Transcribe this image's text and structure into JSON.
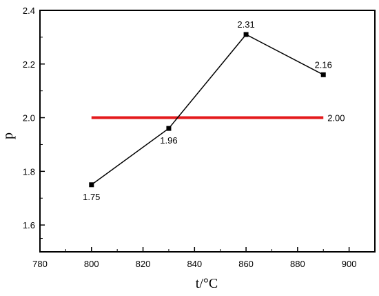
{
  "chart_data": {
    "type": "line",
    "title": "",
    "xlabel": "t/°C",
    "ylabel": "p",
    "xlim": [
      780,
      910
    ],
    "ylim": [
      1.5,
      2.4
    ],
    "xticks": [
      780,
      800,
      820,
      840,
      860,
      880,
      900
    ],
    "xtick_labels": [
      "780",
      "800",
      "820",
      "840",
      "860",
      "880",
      "900"
    ],
    "yticks": [
      1.6,
      1.8,
      2.0,
      2.2,
      2.4
    ],
    "ytick_labels": [
      "1.6",
      "1.8",
      "2.0",
      "2.2",
      "2.4"
    ],
    "grid": false,
    "series": [
      {
        "x": [
          800,
          830,
          860,
          890
        ],
        "y": [
          1.75,
          1.96,
          2.31,
          2.16
        ],
        "labels": [
          "1.75",
          "1.96",
          "2.31",
          "2.16"
        ],
        "color": "#000000",
        "marker": "square"
      }
    ],
    "reference_line": {
      "x": [
        800,
        890
      ],
      "y": 2.0,
      "label": "2.00",
      "color": "#e41a1c"
    }
  }
}
